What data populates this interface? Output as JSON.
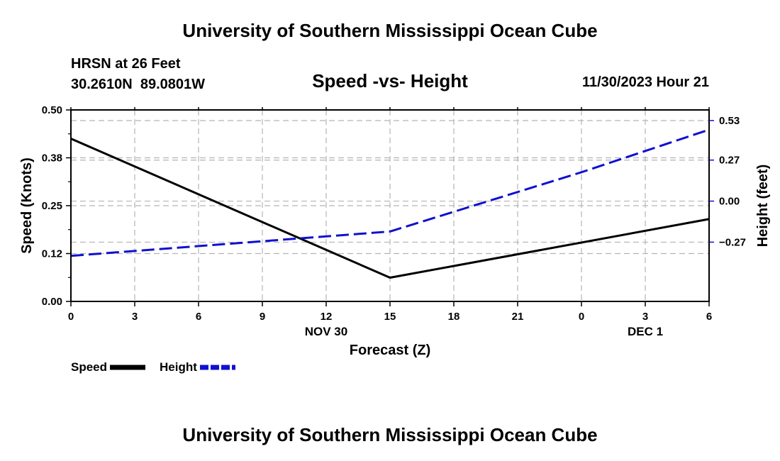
{
  "header": {
    "title": "University of Southern Mississippi Ocean Cube",
    "station_name": "HRSN at 26 Feet",
    "station_coords": "30.2610N  89.0801W",
    "subtitle": "Speed -vs- Height",
    "datestamp": "11/30/2023 Hour 21"
  },
  "footer": {
    "title": "University of Southern Mississippi Ocean Cube"
  },
  "colors": {
    "speed": "#000000",
    "height": "#1010d0",
    "grid": "#b4b4b4"
  },
  "chart_data": {
    "type": "line",
    "title": "Speed -vs- Height",
    "xlabel": "Forecast (Z)",
    "ylabel": "Speed (Knots)",
    "y2label": "Height (feet)",
    "x": [
      0,
      3,
      6,
      9,
      12,
      15,
      18,
      21,
      24,
      27,
      30
    ],
    "xlim": [
      0,
      30
    ],
    "x_tick_labels": [
      "0",
      "3",
      "6",
      "9",
      "12",
      "15",
      "18",
      "21",
      "0",
      "3",
      "6"
    ],
    "date_labels": [
      {
        "x": 12,
        "label": "NOV 30"
      },
      {
        "x": 27,
        "label": "DEC 1"
      }
    ],
    "ylim": [
      0,
      0.5
    ],
    "y_ticks": [
      0.0,
      0.125,
      0.25,
      0.375,
      0.5
    ],
    "y_tick_labels": [
      "0.00",
      "0.12",
      "0.25",
      "0.38",
      "0.50"
    ],
    "y2lim": [
      -0.66,
      0.6
    ],
    "y2_ticks": [
      -0.27,
      0.0,
      0.27,
      0.53
    ],
    "y2_tick_labels": [
      "−0.27",
      "0.00",
      "0.27",
      "0.53"
    ],
    "series": [
      {
        "name": "Speed",
        "axis": "left",
        "style": "solid",
        "x": [
          0,
          15,
          30
        ],
        "values": [
          0.425,
          0.062,
          0.215
        ]
      },
      {
        "name": "Height",
        "axis": "right",
        "style": "dashed",
        "x": [
          0,
          15,
          24,
          30
        ],
        "values": [
          -0.36,
          -0.2,
          0.19,
          0.47
        ]
      }
    ],
    "legend": [
      "Speed",
      "Height"
    ],
    "grid": true
  }
}
